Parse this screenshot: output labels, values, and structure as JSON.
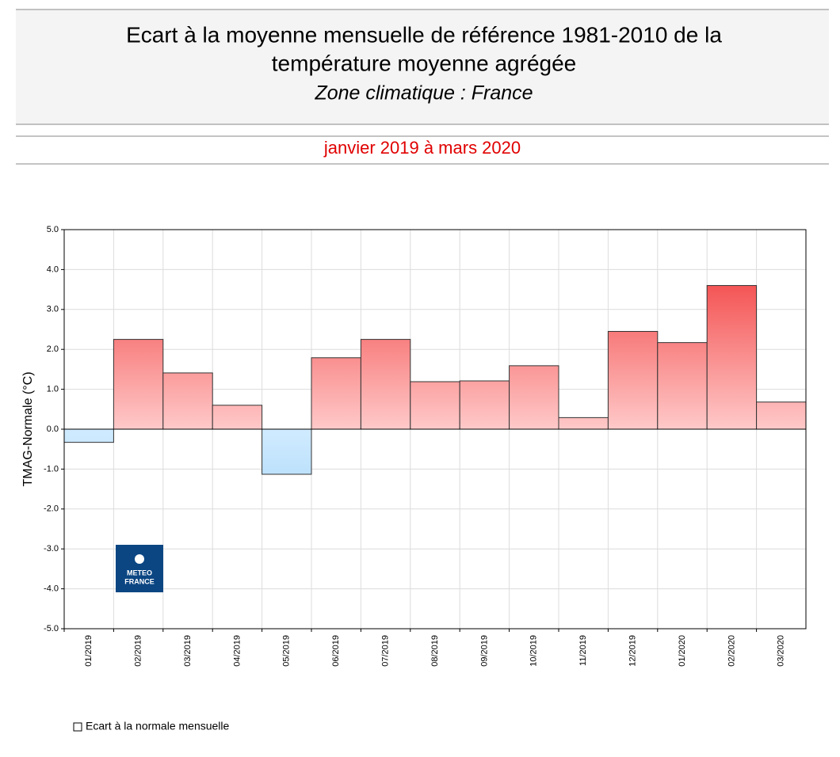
{
  "chart_data": {
    "type": "bar",
    "title_lines": [
      "Ecart à la moyenne mensuelle de référence 1981-2010 de la",
      "température moyenne  agrégée"
    ],
    "subtitle": "Zone climatique : France",
    "period": "janvier 2019 à mars 2020",
    "y_label": "TMAG-Normale (°C)",
    "categories": [
      "01/2019",
      "02/2019",
      "03/2019",
      "04/2019",
      "05/2019",
      "06/2019",
      "07/2019",
      "08/2019",
      "09/2019",
      "10/2019",
      "11/2019",
      "12/2019",
      "01/2020",
      "02/2020",
      "03/2020"
    ],
    "series": [
      {
        "name": "Ecart à la normale mensuelle",
        "values": [
          -0.33,
          2.25,
          1.41,
          0.6,
          -1.13,
          1.79,
          2.25,
          1.19,
          1.21,
          1.59,
          0.29,
          2.45,
          2.17,
          3.6,
          0.68
        ]
      }
    ],
    "colors": {
      "positive": [
        "#ffc9c9",
        "#f02828"
      ],
      "negative": [
        "#d0ebff",
        "#7cc0f2"
      ]
    },
    "ylim": [
      -5,
      5
    ],
    "yticks": [
      {
        "value": -5,
        "label": "-5.0"
      },
      {
        "value": -4,
        "label": "-4.0"
      },
      {
        "value": -3,
        "label": "-3.0"
      },
      {
        "value": -2,
        "label": "-2.0"
      },
      {
        "value": -1,
        "label": "-1.0"
      },
      {
        "value": 0,
        "label": "0.0"
      },
      {
        "value": 1,
        "label": "1.0"
      },
      {
        "value": 2,
        "label": "2.0"
      },
      {
        "value": 3,
        "label": "3.0"
      },
      {
        "value": 4,
        "label": "4.0"
      },
      {
        "value": 5,
        "label": "5.0"
      }
    ],
    "grid": true,
    "logo": [
      "METEO",
      "FRANCE"
    ]
  }
}
